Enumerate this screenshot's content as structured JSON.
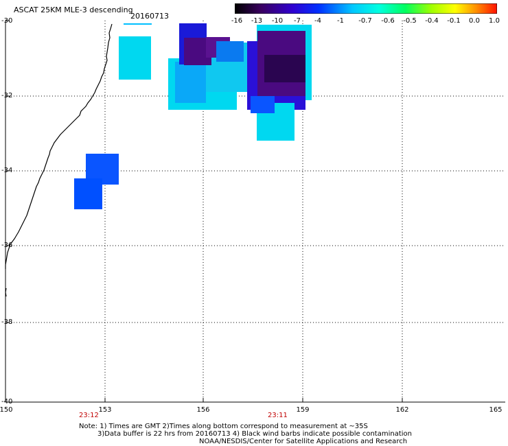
{
  "header": {
    "title": "ASCAT 25KM MLE-3 descending",
    "date": "20160713"
  },
  "colorbar": {
    "labels": [
      "-16",
      "-13",
      "-10",
      "-7",
      "-4",
      "-1",
      "-0.7",
      "-0.6",
      "-0.5",
      "-0.4",
      "-0.1",
      "0.0",
      "1.0"
    ]
  },
  "map": {
    "lat_labels": [
      "-30",
      "-32",
      "-34",
      "-36",
      "-38",
      "-40"
    ],
    "lon_labels": [
      "150",
      "153",
      "156",
      "159",
      "162",
      "165"
    ],
    "time_labels": [
      "23:12",
      "23:11"
    ]
  },
  "footer": {
    "note_line1": "Note: 1) Times are GMT 2)Times along bottom correspond to measurement at ~35S",
    "note_line2": "3)Data buffer is 22 hrs from 20160713 4) Black wind barbs indicate possible contamination",
    "credit": "NOAA/NESDIS/Center for Satellite Applications and Research"
  },
  "colors": {
    "cyan": "#00d8f0",
    "dark_blue": "#1a1ad8",
    "blue": "#0050ff",
    "purple": "#4a0a80",
    "red_time": "#c00000"
  }
}
